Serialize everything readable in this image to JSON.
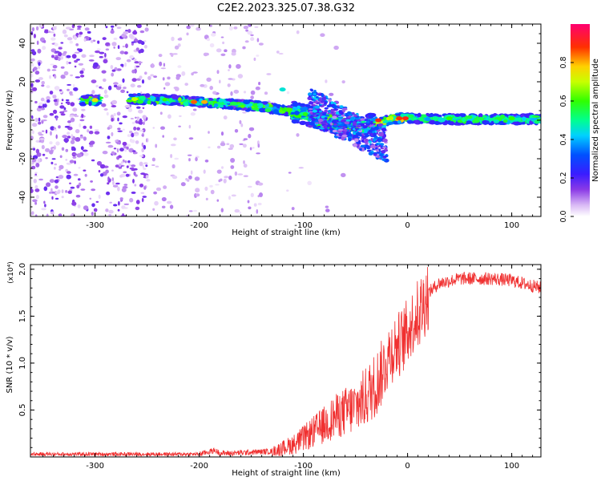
{
  "title": "C2E2.2023.325.07.38.G32",
  "chart_data": [
    {
      "type": "heatmap",
      "xlabel": "Height of straight line (km)",
      "ylabel": "Frequency (Hz)",
      "xlim": [
        -362,
        128
      ],
      "ylim": [
        -50,
        50
      ],
      "xticks": [
        -300,
        -200,
        -100,
        0,
        100
      ],
      "yticks": [
        -40,
        -20,
        0,
        20,
        40
      ],
      "colorbar": {
        "label": "Normalized spectral amplitude",
        "range": [
          0,
          1
        ],
        "ticks": [
          "0.0",
          "0.2",
          "0.4",
          "0.6",
          "0.8"
        ]
      },
      "ridge": [
        {
          "x": -300,
          "y": 10.5
        },
        {
          "x": -260,
          "y": 11.0
        },
        {
          "x": -230,
          "y": 10.5
        },
        {
          "x": -200,
          "y": 9.5
        },
        {
          "x": -170,
          "y": 8.5
        },
        {
          "x": -140,
          "y": 7.0
        },
        {
          "x": -110,
          "y": 4.5
        },
        {
          "x": -90,
          "y": 1.5
        },
        {
          "x": -70,
          "y": -2.0
        },
        {
          "x": -50,
          "y": -4.5
        },
        {
          "x": -30,
          "y": -1.0
        },
        {
          "x": -10,
          "y": 1.0
        },
        {
          "x": 0,
          "y": 1.0
        },
        {
          "x": 50,
          "y": 0.5
        },
        {
          "x": 100,
          "y": 0.5
        },
        {
          "x": 128,
          "y": 0.5
        }
      ]
    },
    {
      "type": "line",
      "xlabel": "Height of straight line (km)",
      "ylabel": "SNR (10 * v/v)",
      "y_multiplier": "(x10⁴)",
      "xlim": [
        -362,
        128
      ],
      "ylim": [
        0,
        2.05
      ],
      "xticks": [
        -300,
        -200,
        -100,
        0,
        100
      ],
      "yticks": [
        "0.5",
        "1.0",
        "1.5",
        "2.0"
      ],
      "series": [
        {
          "color": "#f03030",
          "x": [
            -362,
            -300,
            -200,
            -185,
            -180,
            -170,
            -150,
            -130,
            -110,
            -100,
            -90,
            -80,
            -70,
            -60,
            -50,
            -40,
            -30,
            -25,
            -20,
            -15,
            -10,
            -5,
            0,
            10,
            20,
            30,
            50,
            80,
            100,
            128
          ],
          "y": [
            0.03,
            0.03,
            0.03,
            0.07,
            0.04,
            0.04,
            0.05,
            0.06,
            0.12,
            0.18,
            0.25,
            0.32,
            0.4,
            0.45,
            0.5,
            0.6,
            0.75,
            0.85,
            1.0,
            1.1,
            1.15,
            1.2,
            1.3,
            1.5,
            1.75,
            1.85,
            1.9,
            1.9,
            1.88,
            1.8
          ]
        }
      ]
    }
  ]
}
